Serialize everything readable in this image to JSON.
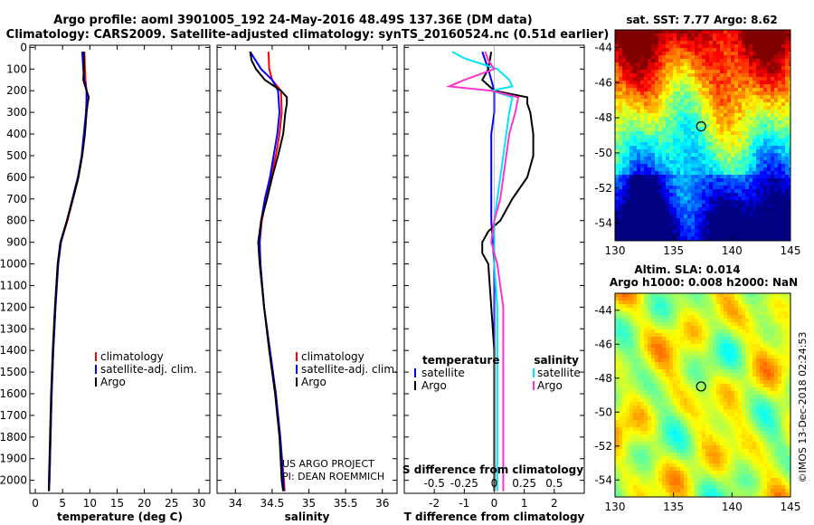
{
  "title_line1": "Argo profile: aoml 3901005_192 24-May-2016 48.49S 137.36E (DM data)",
  "title_line2": "Climatology: CARS2009. Satellite-adjusted climatology: synTS_20160524.nc (0.51d earlier)",
  "depth_ticks": [
    0,
    100,
    200,
    300,
    400,
    500,
    600,
    700,
    800,
    900,
    1000,
    1100,
    1200,
    1300,
    1400,
    1500,
    1600,
    1700,
    1800,
    1900,
    2000
  ],
  "colors": {
    "climatology": "#ff0000",
    "satellite": "#0000ff",
    "argo": "#000000",
    "sat_sal": "#00e5ff",
    "sal": "#ff33cc"
  },
  "chart_data": [
    {
      "type": "line",
      "xlabel": "temperature (deg C)",
      "xlim": [
        -1,
        32
      ],
      "ylim": [
        2060,
        -10
      ],
      "xticks": [
        0,
        5,
        10,
        15,
        20,
        25,
        30
      ],
      "legend": [
        "climatology",
        "satellite-adj. clim.",
        "Argo"
      ],
      "series": [
        {
          "name": "climatology",
          "depth": [
            20,
            100,
            150,
            200,
            250,
            300,
            400,
            500,
            600,
            700,
            800,
            900,
            1000,
            1200,
            1400,
            1600,
            1800,
            2000,
            2050
          ],
          "values": [
            9.0,
            9.1,
            9.2,
            9.4,
            9.4,
            9.3,
            9.0,
            8.6,
            7.9,
            6.9,
            5.9,
            4.7,
            4.2,
            3.7,
            3.3,
            3.0,
            2.8,
            2.6,
            2.5
          ]
        },
        {
          "name": "satellite-adj. clim.",
          "depth": [
            20,
            100,
            150,
            200,
            250,
            300,
            400,
            500,
            600,
            700,
            800,
            900,
            1000,
            1200,
            1400,
            1600,
            1800,
            2000,
            2050
          ],
          "values": [
            8.6,
            8.8,
            9.0,
            9.4,
            9.4,
            9.3,
            8.9,
            8.5,
            7.8,
            6.8,
            5.8,
            4.7,
            4.2,
            3.7,
            3.3,
            3.0,
            2.8,
            2.6,
            2.5
          ]
        },
        {
          "name": "Argo",
          "depth": [
            20,
            60,
            100,
            150,
            200,
            230,
            260,
            300,
            400,
            500,
            600,
            700,
            800,
            900,
            1000,
            1200,
            1400,
            1600,
            1800,
            2000,
            2050
          ],
          "values": [
            8.9,
            8.9,
            8.9,
            8.8,
            9.4,
            9.8,
            9.6,
            9.4,
            9.1,
            8.6,
            7.9,
            6.9,
            5.8,
            4.6,
            4.1,
            3.6,
            3.2,
            2.9,
            2.7,
            2.5,
            2.5
          ]
        }
      ]
    },
    {
      "type": "line",
      "xlabel": "salinity",
      "xlim": [
        33.75,
        36.2
      ],
      "ylim": [
        2060,
        -10
      ],
      "xticks": [
        34,
        34.5,
        35,
        35.5,
        36
      ],
      "annotation_lines": [
        "US ARGO PROJECT",
        "PI: DEAN ROEMMICH"
      ],
      "legend": [
        "climatology",
        "satellite-adj. clim.",
        "Argo"
      ],
      "series": [
        {
          "name": "climatology",
          "depth": [
            20,
            100,
            150,
            200,
            300,
            400,
            500,
            600,
            700,
            800,
            900,
            1000,
            1200,
            1400,
            1600,
            1800,
            2000,
            2050
          ],
          "values": [
            34.45,
            34.46,
            34.5,
            34.62,
            34.63,
            34.6,
            34.55,
            34.48,
            34.42,
            34.36,
            34.33,
            34.34,
            34.39,
            34.47,
            34.55,
            34.61,
            34.66,
            34.67
          ]
        },
        {
          "name": "satellite-adj. clim.",
          "depth": [
            20,
            100,
            150,
            200,
            300,
            400,
            500,
            600,
            700,
            800,
            900,
            1000,
            1200,
            1400,
            1600,
            1800,
            2000,
            2050
          ],
          "values": [
            34.2,
            34.35,
            34.5,
            34.58,
            34.6,
            34.57,
            34.52,
            34.47,
            34.4,
            34.35,
            34.33,
            34.34,
            34.39,
            34.47,
            34.55,
            34.61,
            34.65,
            34.66
          ]
        },
        {
          "name": "Argo",
          "depth": [
            20,
            60,
            100,
            150,
            200,
            230,
            260,
            300,
            400,
            500,
            600,
            700,
            800,
            900,
            1000,
            1200,
            1400,
            1600,
            1800,
            2000,
            2050
          ],
          "values": [
            34.2,
            34.22,
            34.28,
            34.4,
            34.62,
            34.7,
            34.7,
            34.68,
            34.65,
            34.58,
            34.5,
            34.43,
            34.35,
            34.31,
            34.33,
            34.39,
            34.46,
            34.54,
            34.6,
            34.63,
            34.65
          ]
        }
      ]
    },
    {
      "type": "line",
      "xlabel": "T difference from climatology",
      "top_xlabel": "S difference from climatology",
      "xlim": [
        -3,
        3
      ],
      "ylim": [
        2060,
        -10
      ],
      "xticks": [
        -2,
        -1,
        0,
        1,
        2
      ],
      "top_xtick_labels": [
        "-0.5",
        "-0.25",
        "0",
        "0.25",
        "0.5"
      ],
      "top_xtick_values": [
        -2,
        -1,
        0,
        1,
        2
      ],
      "legend_left_title": "temperature",
      "legend_right_title": "salinity",
      "legend": [
        "satellite",
        "Argo",
        "satellite",
        "Argo"
      ],
      "series": [
        {
          "name": "satellite",
          "depth": [
            20,
            60,
            100,
            150,
            200,
            300,
            400,
            600,
            800,
            1000,
            1200,
            1500,
            1800,
            2050
          ],
          "values": [
            -0.4,
            -0.3,
            -0.2,
            -0.1,
            0.0,
            0.0,
            -0.1,
            -0.1,
            -0.1,
            0.0,
            0.0,
            0.0,
            0.0,
            0.0
          ]
        },
        {
          "name": "Argo",
          "depth": [
            20,
            100,
            150,
            200,
            230,
            260,
            300,
            400,
            500,
            600,
            700,
            800,
            850,
            900,
            950,
            1000,
            1200,
            1400,
            1600,
            1800,
            2050
          ],
          "values": [
            -0.1,
            -0.2,
            -0.4,
            0.0,
            1.1,
            1.1,
            1.2,
            1.3,
            1.3,
            1.1,
            0.6,
            0.2,
            -0.2,
            -0.4,
            -0.4,
            -0.2,
            -0.1,
            0.0,
            0.0,
            0.0,
            0.0
          ]
        },
        {
          "name": "satellite",
          "depth": [
            20,
            50,
            100,
            150,
            180,
            200,
            230,
            300,
            400,
            500,
            600,
            700,
            800,
            900,
            1000,
            1200,
            1400,
            1600,
            1800,
            2050
          ],
          "values": [
            -1.4,
            -1.0,
            0.1,
            0.5,
            0.6,
            -0.1,
            0.6,
            0.5,
            0.4,
            0.3,
            0.2,
            0.1,
            0.0,
            0.0,
            0.0,
            0.1,
            0.1,
            0.1,
            0.1,
            0.1
          ]
        },
        {
          "name": "Argo",
          "depth": [
            20,
            60,
            100,
            150,
            180,
            200,
            230,
            300,
            400,
            500,
            600,
            700,
            800,
            900,
            1000,
            1200,
            1400,
            1600,
            1800,
            2050
          ],
          "values": [
            -0.3,
            -0.2,
            0.0,
            -1.0,
            -1.5,
            -0.1,
            0.8,
            0.7,
            0.5,
            0.4,
            0.3,
            0.2,
            0.0,
            -0.1,
            0.1,
            0.3,
            0.3,
            0.3,
            0.3,
            0.3
          ]
        }
      ]
    },
    {
      "type": "heatmap",
      "title": "sat. SST: 7.77 Argo: 8.62",
      "xlim": [
        130,
        145
      ],
      "ylim": [
        -55,
        -43
      ],
      "xticks": [
        130,
        135,
        140,
        145
      ],
      "yticks": [
        -44,
        -46,
        -48,
        -50,
        -52,
        -54
      ],
      "marker": {
        "lon": 137.36,
        "lat": -48.49
      }
    },
    {
      "type": "heatmap",
      "title_line1": "Altim. SLA: 0.014",
      "title_line2": "Argo h1000: 0.008 h2000: NaN",
      "xlim": [
        130,
        145
      ],
      "ylim": [
        -55,
        -43
      ],
      "xticks": [
        130,
        135,
        140,
        145
      ],
      "yticks": [
        -44,
        -46,
        -48,
        -50,
        -52,
        -54
      ],
      "marker": {
        "lon": 137.36,
        "lat": -48.49
      }
    }
  ],
  "credit": "©IMOS 13-Dec-2018 02:24:53"
}
